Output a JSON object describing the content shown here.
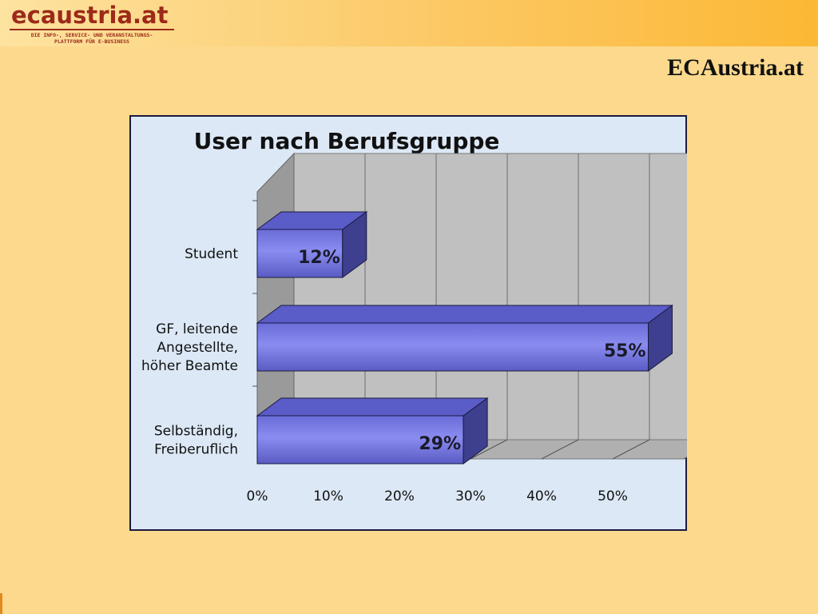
{
  "header": {
    "logo_text": "ecaustria.at",
    "logo_tagline_1": "DIE INFO-, SERVICE- UND VERANSTALTUNGS-",
    "logo_tagline_2": "PLATTFORM FÜR E-BUSINESS",
    "page_title": "ECAustria.at"
  },
  "colors": {
    "background": "#fcd98c",
    "header_band": "#fbb834",
    "logo": "#9c2a1a",
    "bar_front": "#8a8cf0",
    "bar_top": "#5a5cc8",
    "bar_side": "#3e3f8e",
    "chart_wall": "#c0c0c0",
    "chart_floor": "#b0b0b0"
  },
  "chart_data": {
    "type": "bar",
    "orientation": "horizontal",
    "style": "3d",
    "title": "User nach Berufsgruppe",
    "categories": [
      [
        "Student"
      ],
      [
        "GF, leitende",
        "Angestellte,",
        "höher Beamte"
      ],
      [
        "Selbständig,",
        "Freiberuflich"
      ]
    ],
    "values": [
      12,
      55,
      29
    ],
    "data_labels": [
      "12%",
      "55%",
      "29%"
    ],
    "x_ticks": [
      "0%",
      "10%",
      "20%",
      "30%",
      "40%",
      "50%"
    ],
    "xlim": [
      0,
      60
    ],
    "grid": true
  }
}
